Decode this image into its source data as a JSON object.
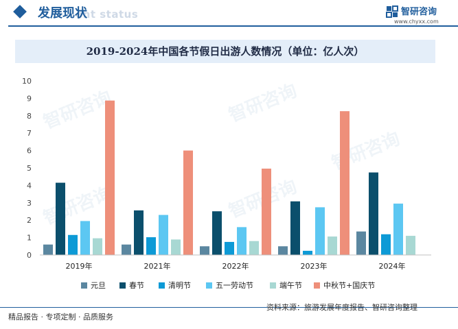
{
  "header": {
    "title": "发展现状",
    "ghost_text": "ent status",
    "logo_text": "智研咨询",
    "logo_url": "www.chyxx.com"
  },
  "chart_data": {
    "type": "bar",
    "title": "2019-2024年中国各节假日出游人数情况（单位：亿人次）",
    "categories": [
      "2019年",
      "2021年",
      "2022年",
      "2023年",
      "2024年"
    ],
    "y_ticks": [
      "0",
      "1",
      "2",
      "3",
      "4",
      "5",
      "6",
      "7",
      "8",
      "9",
      "10"
    ],
    "ylim": [
      0,
      10
    ],
    "series": [
      {
        "name": "元旦",
        "color": "#5b87a0",
        "values": [
          0.6,
          0.6,
          0.5,
          0.5,
          1.35
        ]
      },
      {
        "name": "春节",
        "color": "#0b4f6c",
        "values": [
          4.15,
          2.56,
          2.51,
          3.08,
          4.74
        ]
      },
      {
        "name": "清明节",
        "color": "#0d9ad6",
        "values": [
          1.15,
          1.02,
          0.75,
          0.24,
          1.19
        ]
      },
      {
        "name": "五一劳动节",
        "color": "#5cc7f2",
        "values": [
          1.95,
          2.3,
          1.6,
          2.74,
          2.95
        ]
      },
      {
        "name": "端午节",
        "color": "#a8d8d3",
        "values": [
          0.96,
          0.89,
          0.8,
          1.06,
          1.1
        ]
      },
      {
        "name": "中秋节+国庆节",
        "color": "#ee8f7a",
        "values": [
          8.87,
          6.0,
          4.96,
          8.26,
          null
        ]
      }
    ],
    "legend_position": "bottom",
    "grid": false
  },
  "footer": {
    "left": "精品报告 · 专项定制 · 品质服务",
    "source": "资料来源：旅游发展年度报告、智研咨询整理"
  },
  "watermark_text": "智研咨询"
}
